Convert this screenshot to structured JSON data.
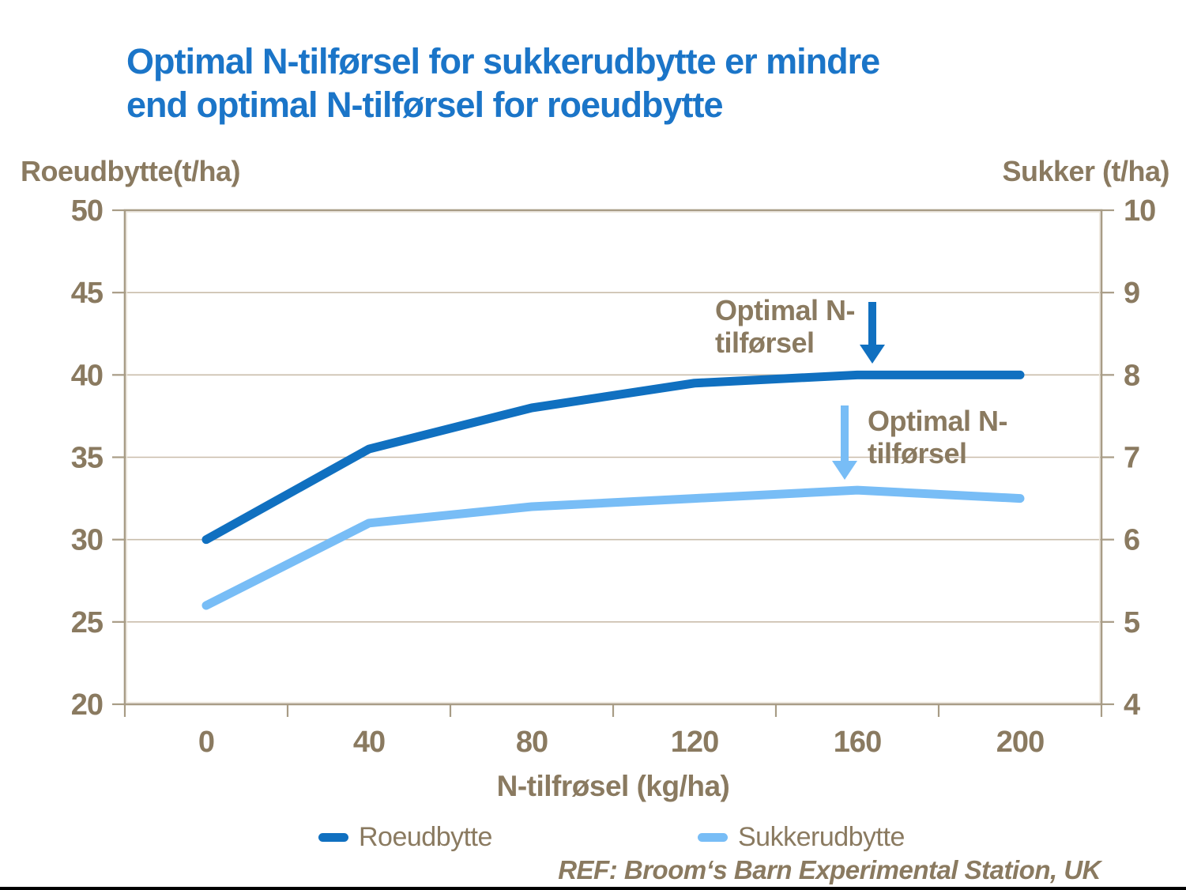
{
  "title": {
    "line1": "Optimal N-tilførsel for sukkerudbytte er mindre",
    "line2": "end optimal N-tilførsel for roeudbytte"
  },
  "colors": {
    "title": "#1B75C8",
    "roeudbytte": "#1070C0",
    "sukkerudbytte": "#78BDF6",
    "text": "#8A7A60",
    "axis_line": "#A89C86",
    "gridline": "#C9BDAB",
    "bottom_edge": "#000000"
  },
  "left_axis": {
    "title": "Roeudbytte(t/ha)",
    "ticks": [
      "50",
      "45",
      "40",
      "35",
      "30",
      "25",
      "20"
    ],
    "min": 20,
    "max": 50
  },
  "right_axis": {
    "title": "Sukker (t/ha)",
    "ticks": [
      "10",
      "9",
      "8",
      "7",
      "6",
      "5",
      "4"
    ],
    "min": 4,
    "max": 10
  },
  "x_axis": {
    "title": "N-tilfrøsel (kg/ha)",
    "tick_labels": [
      "0",
      "40",
      "80",
      "120",
      "160",
      "200"
    ]
  },
  "annotations": [
    {
      "line1": "Optimal N-",
      "line2": "tilførsel",
      "series": "roeudbytte"
    },
    {
      "line1": "Optimal N-",
      "line2": "tilførsel",
      "series": "sukkerudbytte"
    }
  ],
  "legend": [
    {
      "label": "Roeudbytte",
      "series": "roeudbytte"
    },
    {
      "label": "Sukkerudbytte",
      "series": "sukkerudbytte"
    }
  ],
  "footer": "REF: Broom‘s Barn Experimental Station, UK",
  "chart_data": {
    "type": "line",
    "categories": [
      0,
      40,
      80,
      120,
      160,
      200
    ],
    "xlabel": "N-tilfrøsel (kg/ha)",
    "series": [
      {
        "name": "Roeudbytte",
        "axis": "left",
        "color": "#1070C0",
        "values": [
          30,
          35.5,
          38,
          39.5,
          40,
          40
        ]
      },
      {
        "name": "Sukkerudbytte",
        "axis": "right",
        "color": "#78BDF6",
        "values": [
          5.2,
          6.2,
          6.4,
          6.5,
          6.6,
          6.5
        ]
      }
    ],
    "ylabel_left": "Roeudbytte(t/ha)",
    "ylabel_right": "Sukker (t/ha)",
    "ylim_left": [
      20,
      50
    ],
    "ylim_right": [
      4,
      10
    ],
    "y_step_left": 5,
    "y_step_right": 1,
    "grid": "horizontal",
    "legend_position": "bottom"
  }
}
